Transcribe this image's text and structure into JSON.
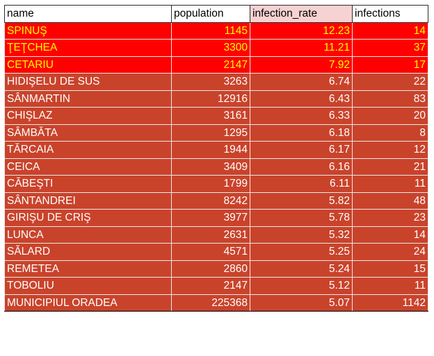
{
  "headers": {
    "name": "name",
    "population": "population",
    "infection_rate": "infection_rate",
    "infections": "infections"
  },
  "colors": {
    "highlight_fill": "#ff0000",
    "highlight_text": "#ffff00",
    "row_fill": "#c9432b",
    "row_text": "#ffffff",
    "rate_header_fill": "#f6d2d2"
  },
  "rows": [
    {
      "name": "SPINUŞ",
      "population": "1145",
      "infection_rate": "12.23",
      "infections": "14",
      "highlight": true
    },
    {
      "name": "ŢEŢCHEA",
      "population": "3300",
      "infection_rate": "11.21",
      "infections": "37",
      "highlight": true
    },
    {
      "name": "CETARIU",
      "population": "2147",
      "infection_rate": "7.92",
      "infections": "17",
      "highlight": true
    },
    {
      "name": "HIDIŞELU DE SUS",
      "population": "3263",
      "infection_rate": "6.74",
      "infections": "22",
      "highlight": false
    },
    {
      "name": "SÂNMARTIN",
      "population": "12916",
      "infection_rate": "6.43",
      "infections": "83",
      "highlight": false
    },
    {
      "name": "CHIŞLAZ",
      "population": "3161",
      "infection_rate": "6.33",
      "infections": "20",
      "highlight": false
    },
    {
      "name": "SÂMBĂTA",
      "population": "1295",
      "infection_rate": "6.18",
      "infections": "8",
      "highlight": false
    },
    {
      "name": "TĂRCAIA",
      "population": "1944",
      "infection_rate": "6.17",
      "infections": "12",
      "highlight": false
    },
    {
      "name": "CEICA",
      "population": "3409",
      "infection_rate": "6.16",
      "infections": "21",
      "highlight": false
    },
    {
      "name": "CĂBEŞTI",
      "population": "1799",
      "infection_rate": "6.11",
      "infections": "11",
      "highlight": false
    },
    {
      "name": "SÂNTANDREI",
      "population": "8242",
      "infection_rate": "5.82",
      "infections": "48",
      "highlight": false
    },
    {
      "name": "GIRIŞU DE CRIŞ",
      "population": "3977",
      "infection_rate": "5.78",
      "infections": "23",
      "highlight": false
    },
    {
      "name": "LUNCA",
      "population": "2631",
      "infection_rate": "5.32",
      "infections": "14",
      "highlight": false
    },
    {
      "name": "SĂLARD",
      "population": "4571",
      "infection_rate": "5.25",
      "infections": "24",
      "highlight": false
    },
    {
      "name": "REMETEA",
      "population": "2860",
      "infection_rate": "5.24",
      "infections": "15",
      "highlight": false
    },
    {
      "name": "TOBOLIU",
      "population": "2147",
      "infection_rate": "5.12",
      "infections": "11",
      "highlight": false
    },
    {
      "name": "MUNICIPIUL ORADEA",
      "population": "225368",
      "infection_rate": "5.07",
      "infections": "1142",
      "highlight": false
    }
  ]
}
